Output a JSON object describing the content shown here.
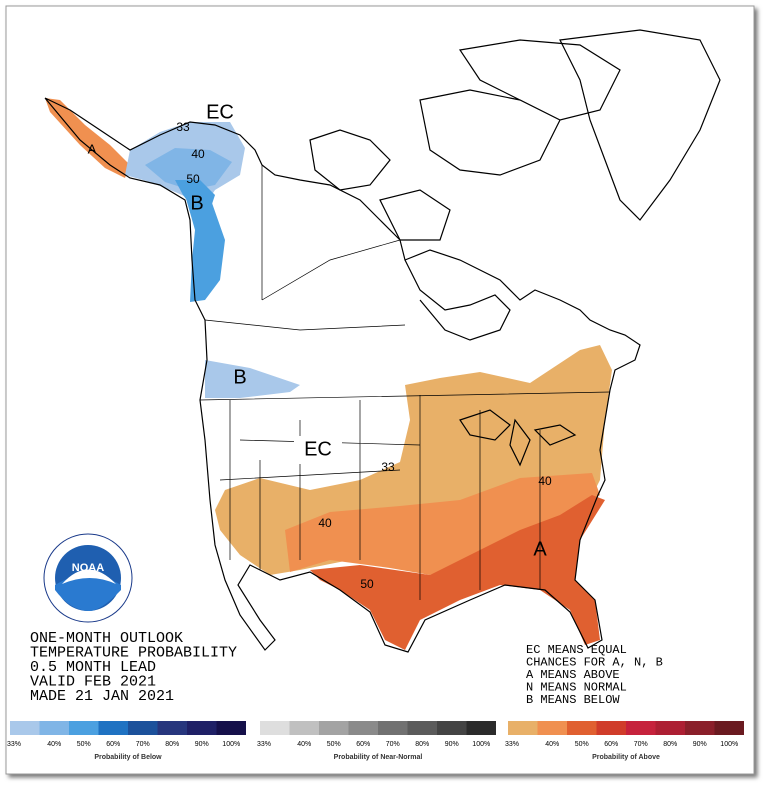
{
  "map_labels": [
    "EC",
    "33",
    "40",
    "50",
    "B",
    "A",
    "B",
    "EC",
    "33",
    "40",
    "40",
    "50",
    "A"
  ],
  "outlook": {
    "lines": [
      "ONE-MONTH OUTLOOK",
      "TEMPERATURE PROBABILITY",
      "0.5 MONTH LEAD",
      "VALID FEB 2021",
      "MADE 21 JAN 2021"
    ]
  },
  "key": {
    "lines": [
      "EC MEANS EQUAL",
      "CHANCES FOR A, N, B",
      "A MEANS ABOVE",
      "N MEANS NORMAL",
      "B MEANS BELOW"
    ]
  },
  "logo": "NOAA",
  "legends": [
    {
      "title": "Probability of Below",
      "labels": [
        "33%",
        "40%",
        "50%",
        "60%",
        "70%",
        "80%",
        "90%",
        "100%"
      ],
      "colors": [
        "#a9c8ea",
        "#80b5e6",
        "#4ba0e0",
        "#1f72c2",
        "#1c519b",
        "#27367d",
        "#1f2066",
        "#15104a"
      ]
    },
    {
      "title": "Probability of Near-Normal",
      "labels": [
        "33%",
        "40%",
        "50%",
        "60%",
        "70%",
        "80%",
        "90%",
        "100%"
      ],
      "colors": [
        "#dedede",
        "#c0c0c0",
        "#a3a3a3",
        "#8a8a8a",
        "#717171",
        "#5b5b5b",
        "#444444",
        "#2b2b2b"
      ]
    },
    {
      "title": "Probability of Above",
      "labels": [
        "33%",
        "40%",
        "50%",
        "60%",
        "70%",
        "80%",
        "90%",
        "100%"
      ],
      "colors": [
        "#e8b068",
        "#f09050",
        "#e06030",
        "#d03c2a",
        "#c6223c",
        "#ad1f33",
        "#8a1f2a",
        "#6a1a20"
      ]
    }
  ]
}
